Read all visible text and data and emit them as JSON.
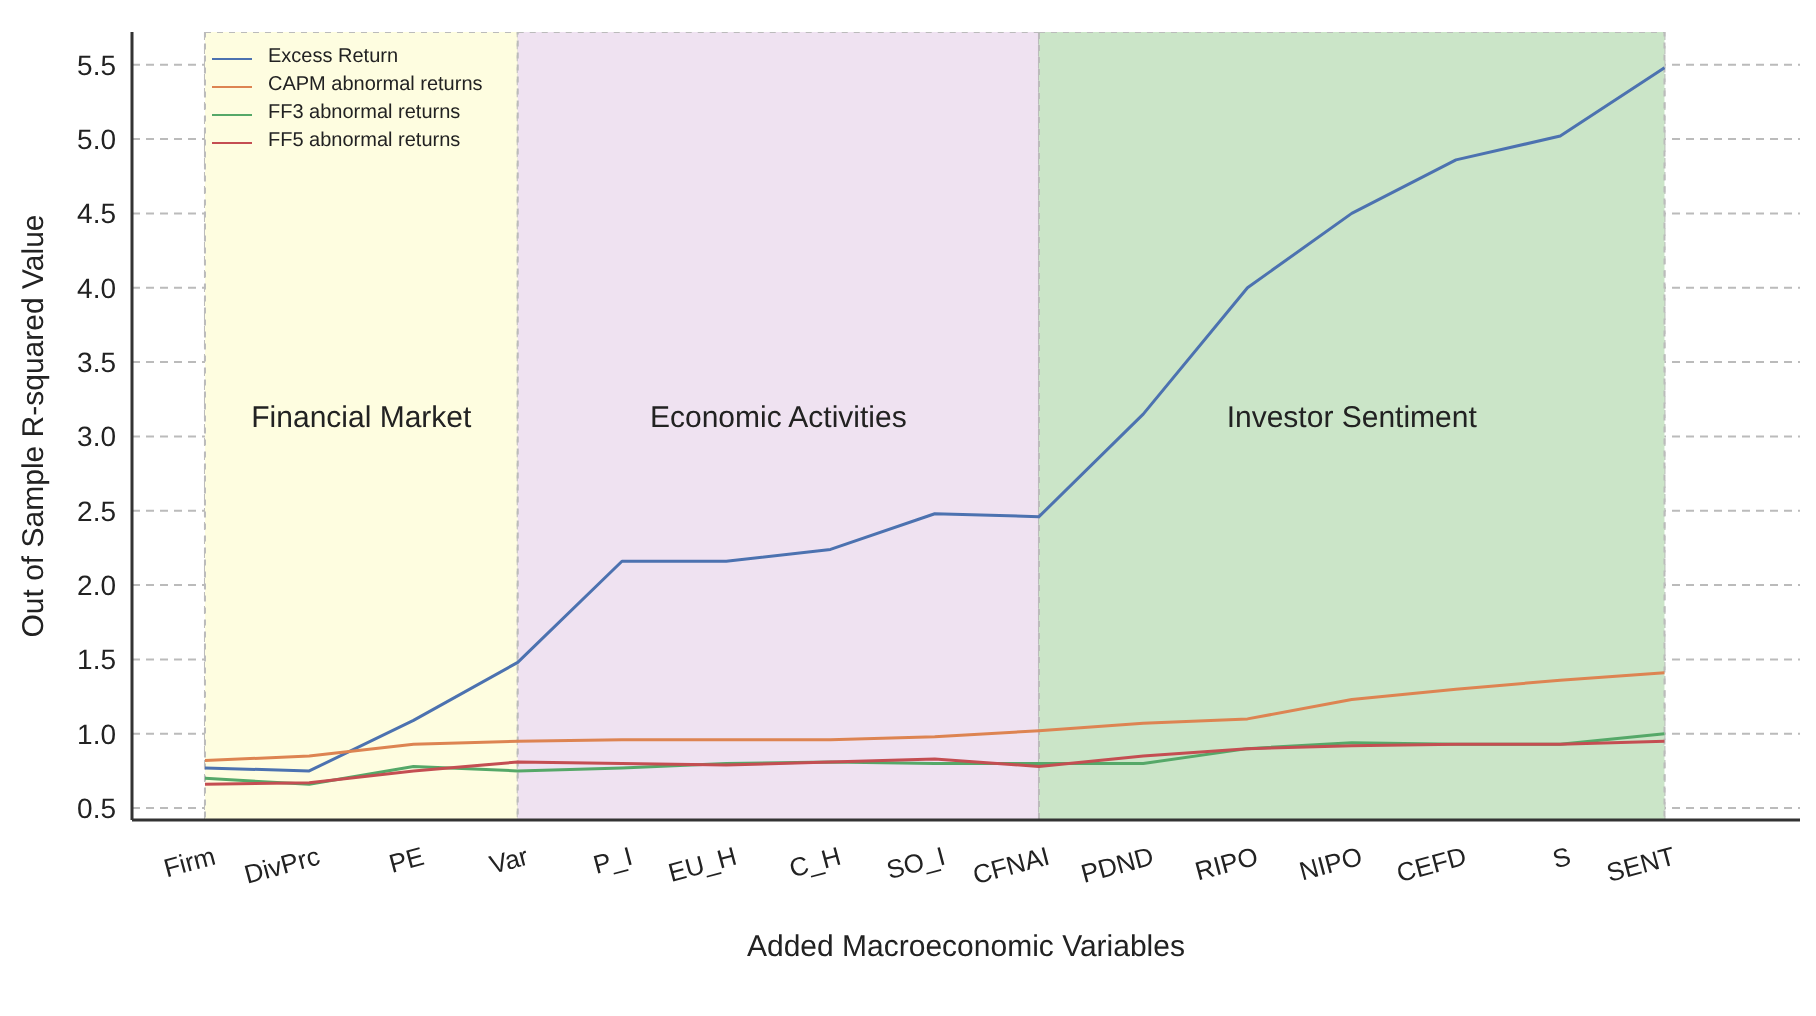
{
  "chart_data": {
    "type": "line",
    "xlabel": "Added Macroeconomic Variables",
    "ylabel": "Out of Sample R-squared Value",
    "categories": [
      "Firm",
      "DivPrc",
      "PE",
      "Var",
      "P_I",
      "EU_H",
      "C_H",
      "SO_I",
      "CFNAI",
      "PDND",
      "RIPO",
      "NIPO",
      "CEFD",
      "S",
      "SENT"
    ],
    "ylim": [
      0.42,
      5.72
    ],
    "yticks": [
      0.5,
      {
        "value": 1,
        "label": "1.0"
      },
      1.5,
      {
        "value": 2,
        "label": "2.0"
      },
      2.5,
      {
        "value": 3,
        "label": "3.0"
      },
      3.5,
      {
        "value": 4,
        "label": "4.0"
      },
      4.5,
      {
        "value": 5,
        "label": "5.0"
      },
      5.5
    ],
    "series": [
      {
        "name": "Excess Return",
        "color": "#4c72b0",
        "values": [
          0.77,
          0.75,
          1.09,
          1.48,
          2.16,
          2.16,
          2.24,
          2.48,
          2.46,
          3.15,
          4.0,
          4.5,
          4.86,
          5.02,
          5.48
        ]
      },
      {
        "name": "CAPM abnormal returns",
        "color": "#dd8452",
        "values": [
          0.82,
          0.85,
          0.93,
          0.95,
          0.96,
          0.96,
          0.96,
          0.98,
          1.02,
          1.07,
          1.1,
          1.23,
          1.3,
          1.36,
          1.41
        ]
      },
      {
        "name": "FF3 abnormal returns",
        "color": "#55a868",
        "values": [
          0.7,
          0.66,
          0.78,
          0.75,
          0.77,
          0.8,
          0.81,
          0.8,
          0.8,
          0.8,
          0.9,
          0.94,
          0.93,
          0.93,
          1.0
        ]
      },
      {
        "name": "FF5 abnormal returns",
        "color": "#c44e52",
        "values": [
          0.66,
          0.67,
          0.75,
          0.81,
          0.8,
          0.79,
          0.81,
          0.83,
          0.78,
          0.85,
          0.9,
          0.92,
          0.93,
          0.93,
          0.95
        ]
      }
    ],
    "bands": [
      {
        "axis": "x",
        "from": "Firm",
        "to": "Var",
        "label": "Financial Market",
        "color": "#fefde0"
      },
      {
        "axis": "x",
        "from": "Var",
        "to": "CFNAI",
        "label": "Economic Activities",
        "color": "#efe2f1"
      },
      {
        "axis": "x",
        "from": "CFNAI",
        "to": "SENT",
        "label": "Investor Sentiment",
        "color": "#cbe5c8"
      }
    ],
    "grid": true,
    "legend": "top left",
    "marker": "none",
    "line_style": "solid"
  }
}
